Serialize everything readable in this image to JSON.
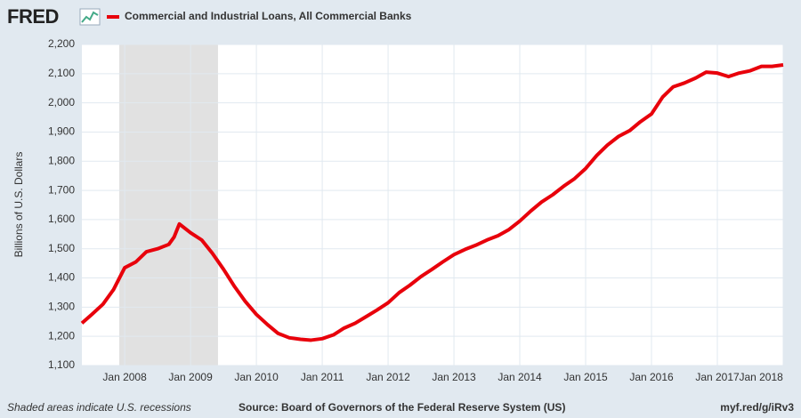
{
  "brand": "FRED",
  "chart_data": {
    "type": "line",
    "y_label": "Billions of U.S. Dollars",
    "footnote": "Shaded areas indicate U.S. recessions",
    "source": "Source: Board of Governors of the Federal Reserve System (US)",
    "link": "myf.red/g/iRv3",
    "grid": true,
    "recessions": [
      {
        "start": 2007.917,
        "end": 2009.417
      }
    ],
    "xlim": [
      2007.35,
      2018.0
    ],
    "ylim": [
      1100,
      2200
    ],
    "xticks": [
      {
        "value": 2008,
        "label": "Jan 2008"
      },
      {
        "value": 2009,
        "label": "Jan 2009"
      },
      {
        "value": 2010,
        "label": "Jan 2010"
      },
      {
        "value": 2011,
        "label": "Jan 2011"
      },
      {
        "value": 2012,
        "label": "Jan 2012"
      },
      {
        "value": 2013,
        "label": "Jan 2013"
      },
      {
        "value": 2014,
        "label": "Jan 2014"
      },
      {
        "value": 2015,
        "label": "Jan 2015"
      },
      {
        "value": 2016,
        "label": "Jan 2016"
      },
      {
        "value": 2017,
        "label": "Jan 2017"
      },
      {
        "value": 2018,
        "label": "Jan 2018"
      }
    ],
    "yticks": [
      {
        "value": 1100,
        "label": "1,100"
      },
      {
        "value": 1200,
        "label": "1,200"
      },
      {
        "value": 1300,
        "label": "1,300"
      },
      {
        "value": 1400,
        "label": "1,400"
      },
      {
        "value": 1500,
        "label": "1,500"
      },
      {
        "value": 1600,
        "label": "1,600"
      },
      {
        "value": 1700,
        "label": "1,700"
      },
      {
        "value": 1800,
        "label": "1,800"
      },
      {
        "value": 1900,
        "label": "1,900"
      },
      {
        "value": 2000,
        "label": "2,000"
      },
      {
        "value": 2100,
        "label": "2,100"
      },
      {
        "value": 2200,
        "label": "2,200"
      }
    ],
    "x": [
      2007.35,
      2007.5,
      2007.67,
      2007.83,
      2008.0,
      2008.17,
      2008.33,
      2008.5,
      2008.67,
      2008.75,
      2008.83,
      2009.0,
      2009.17,
      2009.33,
      2009.5,
      2009.67,
      2009.83,
      2010.0,
      2010.17,
      2010.33,
      2010.5,
      2010.67,
      2010.83,
      2011.0,
      2011.17,
      2011.33,
      2011.5,
      2011.67,
      2011.83,
      2012.0,
      2012.17,
      2012.33,
      2012.5,
      2012.67,
      2012.83,
      2013.0,
      2013.17,
      2013.33,
      2013.5,
      2013.67,
      2013.83,
      2014.0,
      2014.17,
      2014.33,
      2014.5,
      2014.67,
      2014.83,
      2015.0,
      2015.17,
      2015.33,
      2015.5,
      2015.67,
      2015.83,
      2016.0,
      2016.17,
      2016.33,
      2016.5,
      2016.67,
      2016.83,
      2017.0,
      2017.17,
      2017.33,
      2017.5,
      2017.67,
      2017.83,
      2018.0
    ],
    "series": [
      {
        "name": "Commercial and Industrial Loans, All Commercial Banks",
        "color": "#e8000b",
        "values": [
          1245,
          1275,
          1310,
          1360,
          1435,
          1455,
          1490,
          1500,
          1515,
          1540,
          1585,
          1555,
          1530,
          1485,
          1430,
          1370,
          1320,
          1275,
          1240,
          1210,
          1195,
          1190,
          1187,
          1192,
          1205,
          1228,
          1245,
          1268,
          1290,
          1315,
          1350,
          1375,
          1405,
          1430,
          1455,
          1480,
          1498,
          1512,
          1530,
          1545,
          1565,
          1595,
          1630,
          1660,
          1685,
          1715,
          1740,
          1775,
          1820,
          1855,
          1885,
          1905,
          1935,
          1962,
          2020,
          2055,
          2068,
          2085,
          2105,
          2102,
          2090,
          2102,
          2110,
          2125,
          2125,
          2130
        ]
      }
    ]
  }
}
